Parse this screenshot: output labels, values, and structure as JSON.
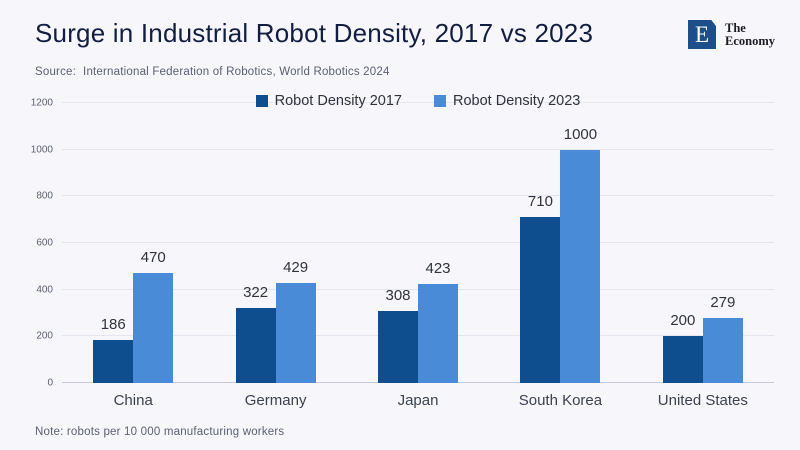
{
  "header": {
    "title": "Surge in Industrial Robot Density, 2017 vs 2023",
    "source_label": "Source:",
    "source_text": "International Federation of Robotics, World Robotics 2024"
  },
  "logo": {
    "monogram": "E",
    "name_line1": "The",
    "name_line2": "Economy",
    "square_color": "#1d4e89"
  },
  "note": "Note: robots per 10 000 manufacturing workers",
  "colors": {
    "background": "#f7f7fb",
    "title": "#121d42",
    "gridline": "#e4e6ef",
    "baseline": "#c7cbd6",
    "series_2017": "#0e4e8e",
    "series_2023": "#4a8bd8"
  },
  "chart_data": {
    "type": "bar",
    "title": "Surge in Industrial Robot Density, 2017 vs 2023",
    "categories": [
      "China",
      "Germany",
      "Japan",
      "South Korea",
      "United States"
    ],
    "series": [
      {
        "name": "Robot Density 2017",
        "color": "#0e4e8e",
        "values": [
          186,
          322,
          308,
          710,
          200
        ]
      },
      {
        "name": "Robot Density 2023",
        "color": "#4a8bd8",
        "values": [
          470,
          429,
          423,
          1000,
          279
        ]
      }
    ],
    "xlabel": "",
    "ylabel": "",
    "ylim": [
      0,
      1200
    ],
    "yticks": [
      0,
      200,
      400,
      600,
      800,
      1000,
      1200
    ],
    "grid": true,
    "legend_position": "top-center",
    "value_labels": true,
    "units_note": "robots per 10 000 manufacturing workers"
  }
}
